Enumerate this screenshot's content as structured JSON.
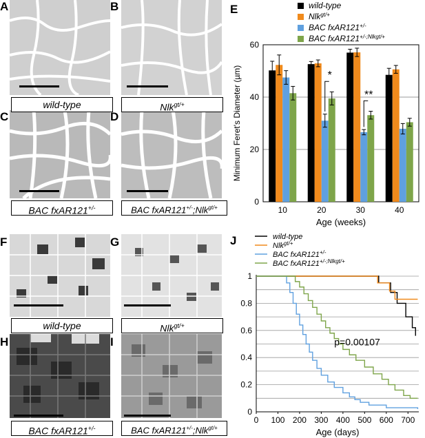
{
  "panels": {
    "A": {
      "letter": "A",
      "caption": "wild-type"
    },
    "B": {
      "letter": "B",
      "caption": "Nlk",
      "caption_sup": "gt/+"
    },
    "C": {
      "letter": "C",
      "caption": "BAC fxAR121",
      "caption_sup": "+/-"
    },
    "D": {
      "letter": "D",
      "caption": "BAC fxAR121",
      "caption_sup": "+/-",
      "caption2": ";Nlk",
      "caption2_sup": "gt/+"
    },
    "E": {
      "letter": "E"
    },
    "F": {
      "letter": "F",
      "caption": "wild-type"
    },
    "G": {
      "letter": "G",
      "caption": "Nlk",
      "caption_sup": "gt/+"
    },
    "H": {
      "letter": "H",
      "caption": "BAC fxAR121",
      "caption_sup": "+/-"
    },
    "I": {
      "letter": "I",
      "caption": "BAC fxAR121",
      "caption_sup": "+/-",
      "caption2": ";Nlk",
      "caption2_sup": "gt/+"
    },
    "J": {
      "letter": "J"
    }
  },
  "colors": {
    "wild_type": "#000000",
    "nlk": "#f08a1c",
    "bac": "#5fa0df",
    "bac_nlk": "#7ea54a"
  },
  "chart_data": [
    {
      "type": "bar",
      "panel": "E",
      "categories": [
        "10",
        "20",
        "30",
        "40"
      ],
      "xlabel": "Age (weeks)",
      "ylabel": "Minimum Feret's Diameter (µm)",
      "ylim": [
        0,
        60
      ],
      "yticks": [
        "0",
        "20",
        "40",
        "60"
      ],
      "grid": true,
      "legend_position": "top-right",
      "series": [
        {
          "name": "wild-type",
          "name_sup": "",
          "values": [
            50.2,
            52.6,
            57.0,
            48.5
          ],
          "errors": [
            3.5,
            1.0,
            1.3,
            2.5
          ]
        },
        {
          "name": "Nlk",
          "name_sup": "gt/+",
          "values": [
            52.3,
            52.9,
            57.1,
            50.6
          ],
          "errors": [
            3.8,
            1.3,
            1.6,
            1.5
          ]
        },
        {
          "name": "BAC fxAR121",
          "name_sup": "+/-",
          "values": [
            47.5,
            31.0,
            26.6,
            27.9
          ],
          "errors": [
            2.6,
            2.5,
            1.0,
            2.0
          ]
        },
        {
          "name": "BAC fxAR121",
          "name_sup": "+/-;Nlk",
          "name_sup2": "gt/+",
          "values": [
            41.5,
            39.5,
            33.1,
            30.4
          ],
          "errors": [
            2.6,
            2.5,
            1.5,
            1.5
          ]
        }
      ],
      "annotations": [
        {
          "text": "*",
          "category": "20"
        },
        {
          "text": "**",
          "category": "30"
        }
      ]
    },
    {
      "type": "line",
      "panel": "J",
      "step": true,
      "xlabel": "Age (days)",
      "xlim": [
        0,
        750
      ],
      "ylim": [
        0,
        1
      ],
      "xticks": [
        "0",
        "100",
        "200",
        "300",
        "400",
        "500",
        "600",
        "700"
      ],
      "yticks": [
        "0",
        "0.2",
        "0.4",
        "0.6",
        "0.8",
        "1"
      ],
      "grid": true,
      "legend_position": "top",
      "annotation": "p=0.00107",
      "series": [
        {
          "name": "wild-type",
          "name_sup": "",
          "x": [
            0,
            385,
            385,
            565,
            565,
            620,
            620,
            650,
            650,
            690,
            690,
            720,
            720,
            735,
            735
          ],
          "y": [
            1,
            1,
            1,
            1,
            0.95,
            0.95,
            0.88,
            0.88,
            0.8,
            0.8,
            0.7,
            0.7,
            0.62,
            0.62,
            0.56
          ]
        },
        {
          "name": "Nlk",
          "name_sup": "gt/+",
          "x": [
            0,
            560,
            560,
            615,
            615,
            640,
            640,
            745
          ],
          "y": [
            1,
            1,
            0.95,
            0.95,
            0.89,
            0.89,
            0.83,
            0.83
          ]
        },
        {
          "name": "BAC fxAR121",
          "name_sup": "+/-",
          "x": [
            0,
            130,
            140,
            155,
            170,
            185,
            200,
            215,
            230,
            245,
            260,
            280,
            300,
            330,
            360,
            400,
            430,
            455,
            480,
            520,
            600,
            745
          ],
          "y": [
            1,
            1,
            0.95,
            0.88,
            0.8,
            0.72,
            0.64,
            0.57,
            0.5,
            0.44,
            0.38,
            0.32,
            0.27,
            0.22,
            0.18,
            0.14,
            0.11,
            0.09,
            0.07,
            0.05,
            0.03,
            0.02
          ]
        },
        {
          "name": "BAC fxAR121",
          "name_sup": "+/-;Nlk",
          "name_sup2": "gt/+",
          "x": [
            0,
            165,
            180,
            200,
            220,
            240,
            260,
            280,
            300,
            320,
            340,
            360,
            380,
            400,
            430,
            460,
            500,
            540,
            580,
            610,
            640,
            680,
            710,
            745
          ],
          "y": [
            1,
            1,
            0.96,
            0.92,
            0.87,
            0.82,
            0.77,
            0.72,
            0.67,
            0.62,
            0.58,
            0.54,
            0.5,
            0.46,
            0.42,
            0.38,
            0.33,
            0.28,
            0.24,
            0.2,
            0.16,
            0.12,
            0.1,
            0.1
          ]
        }
      ]
    }
  ]
}
